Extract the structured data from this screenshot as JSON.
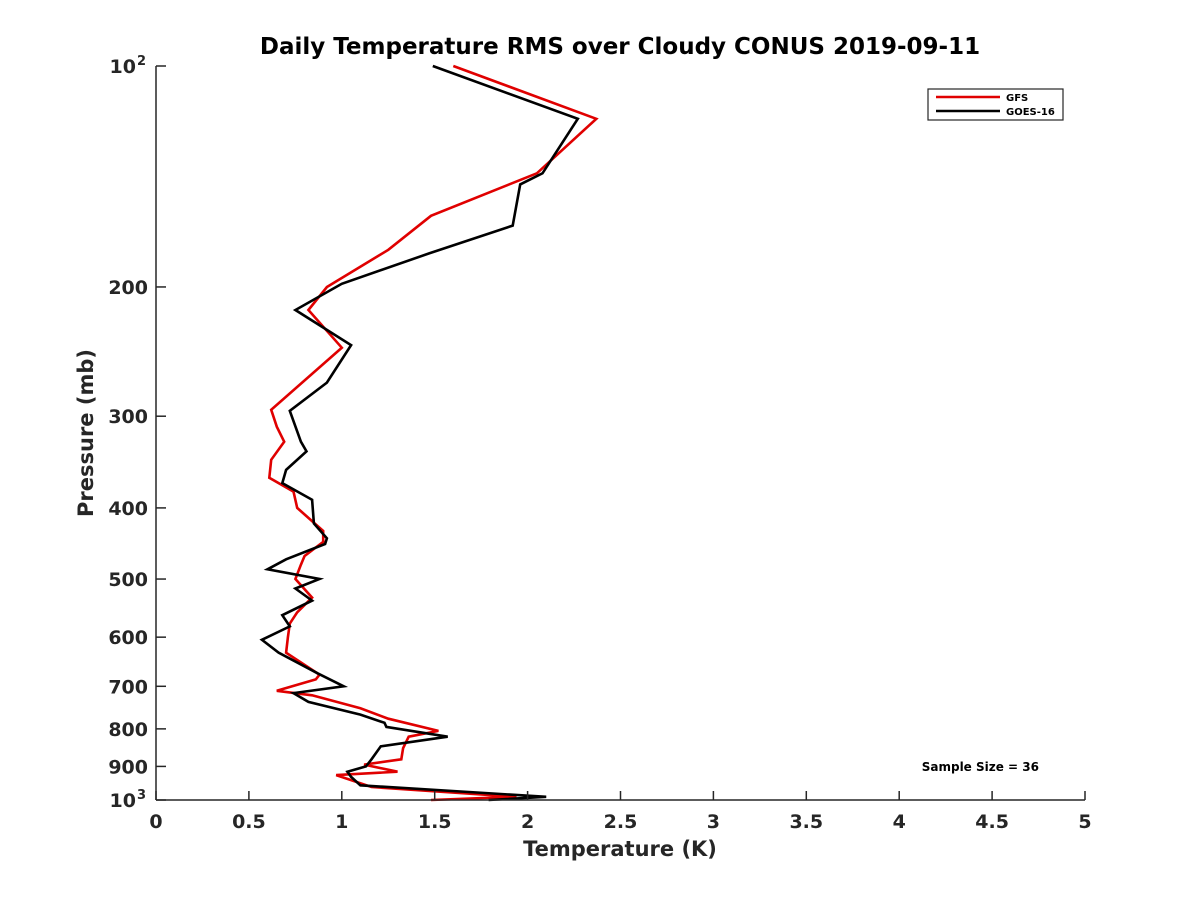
{
  "chart_data": {
    "type": "line",
    "title": "Daily Temperature RMS over Cloudy CONUS 2019-09-11",
    "xlabel": "Temperature (K)",
    "ylabel": "Pressure (mb)",
    "xlim": [
      0,
      5
    ],
    "ylim": [
      100,
      1000
    ],
    "y_scale": "log",
    "y_reversed": true,
    "grid": false,
    "legend_position": "top-right",
    "x_ticks": [
      {
        "value": 0,
        "label": "0"
      },
      {
        "value": 0.5,
        "label": "0.5"
      },
      {
        "value": 1,
        "label": "1"
      },
      {
        "value": 1.5,
        "label": "1.5"
      },
      {
        "value": 2,
        "label": "2"
      },
      {
        "value": 2.5,
        "label": "2.5"
      },
      {
        "value": 3,
        "label": "3"
      },
      {
        "value": 3.5,
        "label": "3.5"
      },
      {
        "value": 4,
        "label": "4"
      },
      {
        "value": 4.5,
        "label": "4.5"
      },
      {
        "value": 5,
        "label": "5"
      }
    ],
    "y_ticks": [
      {
        "value": 100,
        "label": "10",
        "exponent": "2"
      },
      {
        "value": 200,
        "label": "200"
      },
      {
        "value": 300,
        "label": "300"
      },
      {
        "value": 400,
        "label": "400"
      },
      {
        "value": 500,
        "label": "500"
      },
      {
        "value": 600,
        "label": "600"
      },
      {
        "value": 700,
        "label": "700"
      },
      {
        "value": 800,
        "label": "800"
      },
      {
        "value": 900,
        "label": "900"
      },
      {
        "value": 1000,
        "label": "10",
        "exponent": "3"
      }
    ],
    "series": [
      {
        "name": "GFS",
        "color": "#e00000",
        "x": [
          1.6,
          2.37,
          2.05,
          1.48,
          1.25,
          0.92,
          0.82,
          1.0,
          0.62,
          0.65,
          0.69,
          0.62,
          0.61,
          0.74,
          0.76,
          0.9,
          0.9,
          0.8,
          0.78,
          0.75,
          0.84,
          0.76,
          0.72,
          0.71,
          0.7,
          0.88,
          0.86,
          0.65,
          0.84,
          1.1,
          1.25,
          1.52,
          1.36,
          1.33,
          1.32,
          1.12,
          1.3,
          0.97,
          1.16,
          1.94,
          1.48
        ],
        "y": [
          100,
          118,
          140,
          160,
          178,
          200,
          215,
          242,
          294,
          310,
          325,
          344,
          364,
          380,
          400,
          430,
          445,
          465,
          478,
          500,
          530,
          555,
          575,
          600,
          630,
          675,
          685,
          710,
          720,
          750,
          775,
          805,
          820,
          850,
          880,
          895,
          915,
          925,
          960,
          990,
          1000
        ]
      },
      {
        "name": "GOES-16",
        "color": "#000000",
        "x": [
          1.49,
          2.27,
          2.08,
          1.96,
          1.92,
          1.47,
          1.0,
          0.75,
          1.05,
          0.92,
          0.72,
          0.78,
          0.81,
          0.7,
          0.68,
          0.84,
          0.85,
          0.92,
          0.91,
          0.7,
          0.6,
          0.88,
          0.75,
          0.84,
          0.68,
          0.72,
          0.57,
          0.66,
          0.87,
          1.01,
          0.74,
          0.82,
          1.1,
          1.23,
          1.24,
          1.57,
          1.21,
          1.16,
          1.13,
          1.03,
          1.05,
          1.1,
          2.1,
          1.79
        ],
        "y": [
          100,
          118,
          140,
          145,
          165,
          180,
          198,
          215,
          240,
          270,
          295,
          325,
          335,
          355,
          370,
          390,
          420,
          440,
          448,
          470,
          485,
          500,
          515,
          535,
          560,
          580,
          605,
          630,
          672,
          700,
          715,
          735,
          765,
          785,
          795,
          820,
          845,
          880,
          900,
          915,
          930,
          955,
          990,
          1000
        ]
      }
    ],
    "annotations": [
      {
        "text": "Sample Size = 36",
        "position": "bottom-right"
      }
    ]
  }
}
